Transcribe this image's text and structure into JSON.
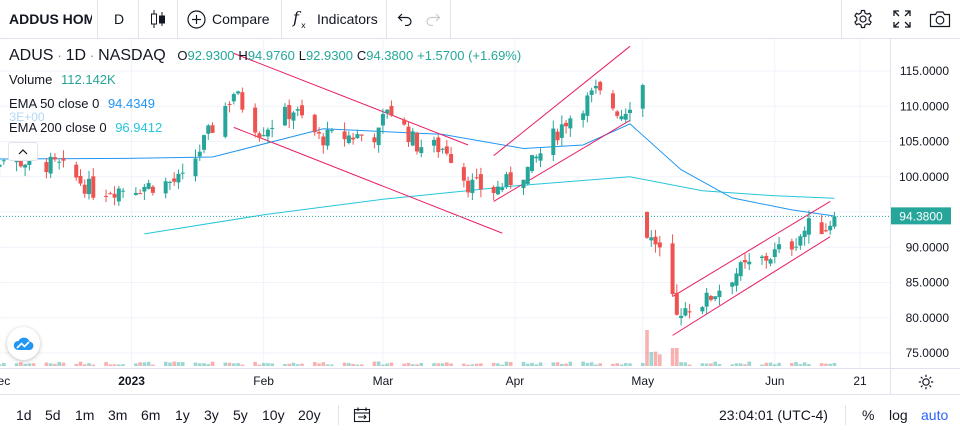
{
  "toolbar": {
    "symbol_label": "ADDUS HOM",
    "interval": "D",
    "compare_label": "Compare",
    "indicators_label": "Indicators",
    "icons": [
      "candles-icon",
      "plus-circle-icon",
      "fx-icon",
      "undo-icon",
      "redo-icon",
      "gear-icon",
      "fullscreen-icon",
      "camera-icon"
    ]
  },
  "legend": {
    "symbol": "ADUS",
    "dot1": "·",
    "interval": "1D",
    "dot2": "·",
    "exchange": "NASDAQ",
    "o_label": "O",
    "o_value": "92.9300",
    "h_label": "H",
    "h_value": "94.9760",
    "l_label": "L",
    "l_value": "92.9300",
    "c_label": "C",
    "c_value": "94.3800",
    "change": "+1.5700 (+1.69%)",
    "volume_label": "Volume",
    "volume_value": "112.142K",
    "ema50_label": "EMA 50 close 0",
    "ema50_value": "94.4349",
    "ema200_label": "EMA 200 close 0",
    "ema200_value": "96.9412",
    "faint_text": "ЗЕ+00"
  },
  "colors": {
    "up": "#26a69a",
    "down": "#ef5350",
    "ema50": "#2196f3",
    "ema200": "#26c6da",
    "channel": "#e91e63",
    "accent": "#2962ff"
  },
  "price_axis": {
    "labels": [
      "115.0000",
      "110.0000",
      "105.0000",
      "100.0000",
      "95.0000",
      "90.0000",
      "85.0000",
      "80.0000",
      "75.0000"
    ],
    "current_price": "94.3800"
  },
  "time_axis": {
    "labels": [
      {
        "text": "Dec",
        "bold": false
      },
      {
        "text": "2023",
        "bold": true
      },
      {
        "text": "Feb",
        "bold": false
      },
      {
        "text": "Mar",
        "bold": false
      },
      {
        "text": "Apr",
        "bold": false
      },
      {
        "text": "May",
        "bold": false
      },
      {
        "text": "Jun",
        "bold": false
      },
      {
        "text": "21",
        "bold": false
      }
    ]
  },
  "bottombar": {
    "ranges": [
      "1d",
      "5d",
      "1m",
      "3m",
      "6m",
      "1y",
      "3y",
      "5y",
      "10y",
      "20y"
    ],
    "clock": "23:04:01 (UTC-4)",
    "percent_label": "%",
    "log_label": "log",
    "auto_label": "auto"
  },
  "chart_data": {
    "type": "candlestick",
    "symbol": "ADUS",
    "x_range": [
      "2022-11-25",
      "2023-06-21"
    ],
    "y_range": [
      73,
      119
    ],
    "anchors": [
      {
        "x": "2022-11-25",
        "close": 103.0
      },
      {
        "x": "2022-12-15",
        "close": 101.5
      },
      {
        "x": "2022-12-23",
        "close": 98.0
      },
      {
        "x": "2023-01-06",
        "close": 98.8
      },
      {
        "x": "2023-01-13",
        "close": 99.5
      },
      {
        "x": "2023-01-19",
        "close": 106.0
      },
      {
        "x": "2023-01-25",
        "close": 112.0
      },
      {
        "x": "2023-01-31",
        "close": 106.5
      },
      {
        "x": "2023-02-08",
        "close": 109.5
      },
      {
        "x": "2023-02-14",
        "close": 105.5
      },
      {
        "x": "2023-02-28",
        "close": 106.0
      },
      {
        "x": "2023-03-02",
        "close": 110.0
      },
      {
        "x": "2023-03-09",
        "close": 104.5
      },
      {
        "x": "2023-03-16",
        "close": 104.0
      },
      {
        "x": "2023-03-21",
        "close": 99.0
      },
      {
        "x": "2023-03-27",
        "close": 98.0
      },
      {
        "x": "2023-04-04",
        "close": 101.0
      },
      {
        "x": "2023-04-13",
        "close": 108.0
      },
      {
        "x": "2023-04-20",
        "close": 112.0
      },
      {
        "x": "2023-04-26",
        "close": 109.0
      },
      {
        "x": "2023-05-01",
        "close": 113.0
      },
      {
        "x": "2023-05-02",
        "close": 92.0
      },
      {
        "x": "2023-05-05",
        "close": 89.0
      },
      {
        "x": "2023-05-09",
        "close": 81.0
      },
      {
        "x": "2023-05-16",
        "close": 82.5
      },
      {
        "x": "2023-05-23",
        "close": 86.5
      },
      {
        "x": "2023-05-30",
        "close": 88.5
      },
      {
        "x": "2023-06-05",
        "close": 90.5
      },
      {
        "x": "2023-06-09",
        "close": 93.0
      },
      {
        "x": "2023-06-13",
        "close": 92.8
      },
      {
        "x": "2023-06-15",
        "close": 94.38
      }
    ],
    "ema50": [
      {
        "x": "2022-11-25",
        "y": 102.5
      },
      {
        "x": "2022-12-31",
        "y": 102.6
      },
      {
        "x": "2023-01-20",
        "y": 102.8
      },
      {
        "x": "2023-02-15",
        "y": 106.8
      },
      {
        "x": "2023-03-15",
        "y": 106.0
      },
      {
        "x": "2023-04-03",
        "y": 104.0
      },
      {
        "x": "2023-04-17",
        "y": 104.5
      },
      {
        "x": "2023-04-28",
        "y": 107.5
      },
      {
        "x": "2023-05-10",
        "y": 101.0
      },
      {
        "x": "2023-05-22",
        "y": 97.0
      },
      {
        "x": "2023-06-05",
        "y": 95.3
      },
      {
        "x": "2023-06-15",
        "y": 94.43
      }
    ],
    "ema200": [
      {
        "x": "2023-01-04",
        "y": 91.9
      },
      {
        "x": "2023-02-01",
        "y": 94.6
      },
      {
        "x": "2023-03-01",
        "y": 96.8
      },
      {
        "x": "2023-04-01",
        "y": 98.7
      },
      {
        "x": "2023-04-28",
        "y": 100.0
      },
      {
        "x": "2023-05-15",
        "y": 98.0
      },
      {
        "x": "2023-06-01",
        "y": 97.3
      },
      {
        "x": "2023-06-15",
        "y": 96.94
      }
    ],
    "channels": [
      [
        {
          "x": "2023-01-25",
          "y": 117.5
        },
        {
          "x": "2023-03-21",
          "y": 104.5
        },
        {
          "x": "2023-01-25",
          "y": 107.0
        },
        {
          "x": "2023-03-29",
          "y": 92.0
        }
      ],
      [
        {
          "x": "2023-03-27",
          "y": 96.5
        },
        {
          "x": "2023-04-28",
          "y": 108.0
        },
        {
          "x": "2023-03-27",
          "y": 103.0
        },
        {
          "x": "2023-04-28",
          "y": 118.5
        }
      ],
      [
        {
          "x": "2023-05-08",
          "y": 77.5
        },
        {
          "x": "2023-06-14",
          "y": 91.5
        },
        {
          "x": "2023-05-08",
          "y": 83.0
        },
        {
          "x": "2023-06-14",
          "y": 96.5
        }
      ]
    ]
  }
}
